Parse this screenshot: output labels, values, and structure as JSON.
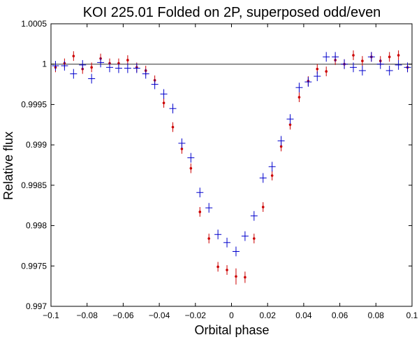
{
  "chart_data": {
    "type": "scatter",
    "title": "KOI 225.01 Folded on 2P, superposed odd/even",
    "xlabel": "Orbital phase",
    "ylabel": "Relative flux",
    "xlim": [
      -0.1,
      0.1
    ],
    "ylim": [
      0.997,
      1.0005
    ],
    "xticks": [
      -0.1,
      -0.08,
      -0.06,
      -0.04,
      -0.02,
      0,
      0.02,
      0.04,
      0.06,
      0.08,
      0.1
    ],
    "xtick_labels": [
      "−0.1",
      "−0.08",
      "−0.06",
      "−0.04",
      "−0.02",
      "0",
      "0.02",
      "0.04",
      "0.06",
      "0.08",
      "0.1"
    ],
    "yticks": [
      0.997,
      0.9975,
      0.998,
      0.9985,
      0.999,
      0.9995,
      1,
      1.0005
    ],
    "ytick_labels": [
      "0.997",
      "0.9975",
      "0.998",
      "0.9985",
      "0.999",
      "0.9995",
      "1",
      "1.0005"
    ],
    "reference_line": {
      "y": 1.0,
      "color": "#555555"
    },
    "grid": false,
    "series": [
      {
        "name": "blue",
        "marker": "plus",
        "color": "#0000cc",
        "x": [
          -0.0975,
          -0.0925,
          -0.0875,
          -0.0825,
          -0.0775,
          -0.0725,
          -0.0675,
          -0.0625,
          -0.0575,
          -0.0525,
          -0.0475,
          -0.0425,
          -0.0375,
          -0.0325,
          -0.0275,
          -0.0225,
          -0.0175,
          -0.0125,
          -0.0075,
          -0.0025,
          0.0025,
          0.0075,
          0.0125,
          0.0175,
          0.0225,
          0.0275,
          0.0325,
          0.0375,
          0.0425,
          0.0475,
          0.0525,
          0.0575,
          0.0625,
          0.0675,
          0.0725,
          0.0775,
          0.0825,
          0.0875,
          0.0925,
          0.0975
        ],
        "y": [
          0.99998,
          0.99998,
          0.99988,
          0.99999,
          0.99982,
          1.00002,
          0.99996,
          0.99995,
          0.99995,
          0.99995,
          0.99988,
          0.99975,
          0.99963,
          0.99945,
          0.99902,
          0.99884,
          0.99841,
          0.99822,
          0.99789,
          0.99779,
          0.99768,
          0.99787,
          0.99812,
          0.99859,
          0.99873,
          0.99905,
          0.99932,
          0.99971,
          0.99978,
          0.99985,
          1.00009,
          1.00009,
          1.0,
          0.99996,
          0.99992,
          1.00009,
          1.0,
          0.99992,
          0.99999,
          0.99996
        ],
        "yerr": [
          6e-05,
          6e-05,
          6e-05,
          6e-05,
          6e-05,
          6e-05,
          6e-05,
          6e-05,
          6e-05,
          6e-05,
          6e-05,
          6e-05,
          6e-05,
          6e-05,
          6e-05,
          6e-05,
          6e-05,
          6e-05,
          6e-05,
          6e-05,
          6e-05,
          6e-05,
          6e-05,
          6e-05,
          6e-05,
          6e-05,
          6e-05,
          6e-05,
          6e-05,
          6e-05,
          6e-05,
          6e-05,
          6e-05,
          6e-05,
          6e-05,
          6e-05,
          6e-05,
          6e-05,
          6e-05,
          6e-05
        ]
      },
      {
        "name": "red",
        "marker": "dot",
        "color": "#cc0000",
        "x": [
          -0.0975,
          -0.0925,
          -0.0875,
          -0.0825,
          -0.0775,
          -0.0725,
          -0.0675,
          -0.0625,
          -0.0575,
          -0.0525,
          -0.0475,
          -0.0425,
          -0.0375,
          -0.0325,
          -0.0275,
          -0.0225,
          -0.0175,
          -0.0125,
          -0.0075,
          -0.0025,
          0.0025,
          0.0075,
          0.0125,
          0.0175,
          0.0225,
          0.0275,
          0.0325,
          0.0375,
          0.0425,
          0.0475,
          0.0525,
          0.0575,
          0.0625,
          0.0675,
          0.0725,
          0.0775,
          0.0825,
          0.0875,
          0.0925,
          0.0975
        ],
        "y": [
          0.99996,
          1.00001,
          1.0001,
          0.99994,
          0.99996,
          1.00007,
          1.00001,
          1.00001,
          1.00005,
          0.99996,
          0.99992,
          0.9998,
          0.99952,
          0.99922,
          0.99895,
          0.99871,
          0.99817,
          0.99784,
          0.99749,
          0.99745,
          0.99737,
          0.99736,
          0.99784,
          0.99823,
          0.99862,
          0.99898,
          0.99925,
          0.99959,
          0.99979,
          0.99994,
          0.99991,
          1.00005,
          1.0,
          1.00011,
          1.00004,
          1.00009,
          1.00004,
          1.00009,
          1.00011,
          0.99996
        ],
        "yerr": [
          6e-05,
          6e-05,
          6e-05,
          6e-05,
          6e-05,
          6e-05,
          6e-05,
          6e-05,
          6e-05,
          6e-05,
          6e-05,
          6e-05,
          6e-05,
          6e-05,
          6e-05,
          6e-05,
          6e-05,
          6e-05,
          6e-05,
          6e-05,
          0.0001,
          7e-05,
          6e-05,
          6e-05,
          6e-05,
          6e-05,
          6e-05,
          6e-05,
          6e-05,
          6e-05,
          6e-05,
          6e-05,
          6e-05,
          6e-05,
          6e-05,
          6e-05,
          6e-05,
          6e-05,
          6e-05,
          6e-05
        ]
      }
    ]
  }
}
